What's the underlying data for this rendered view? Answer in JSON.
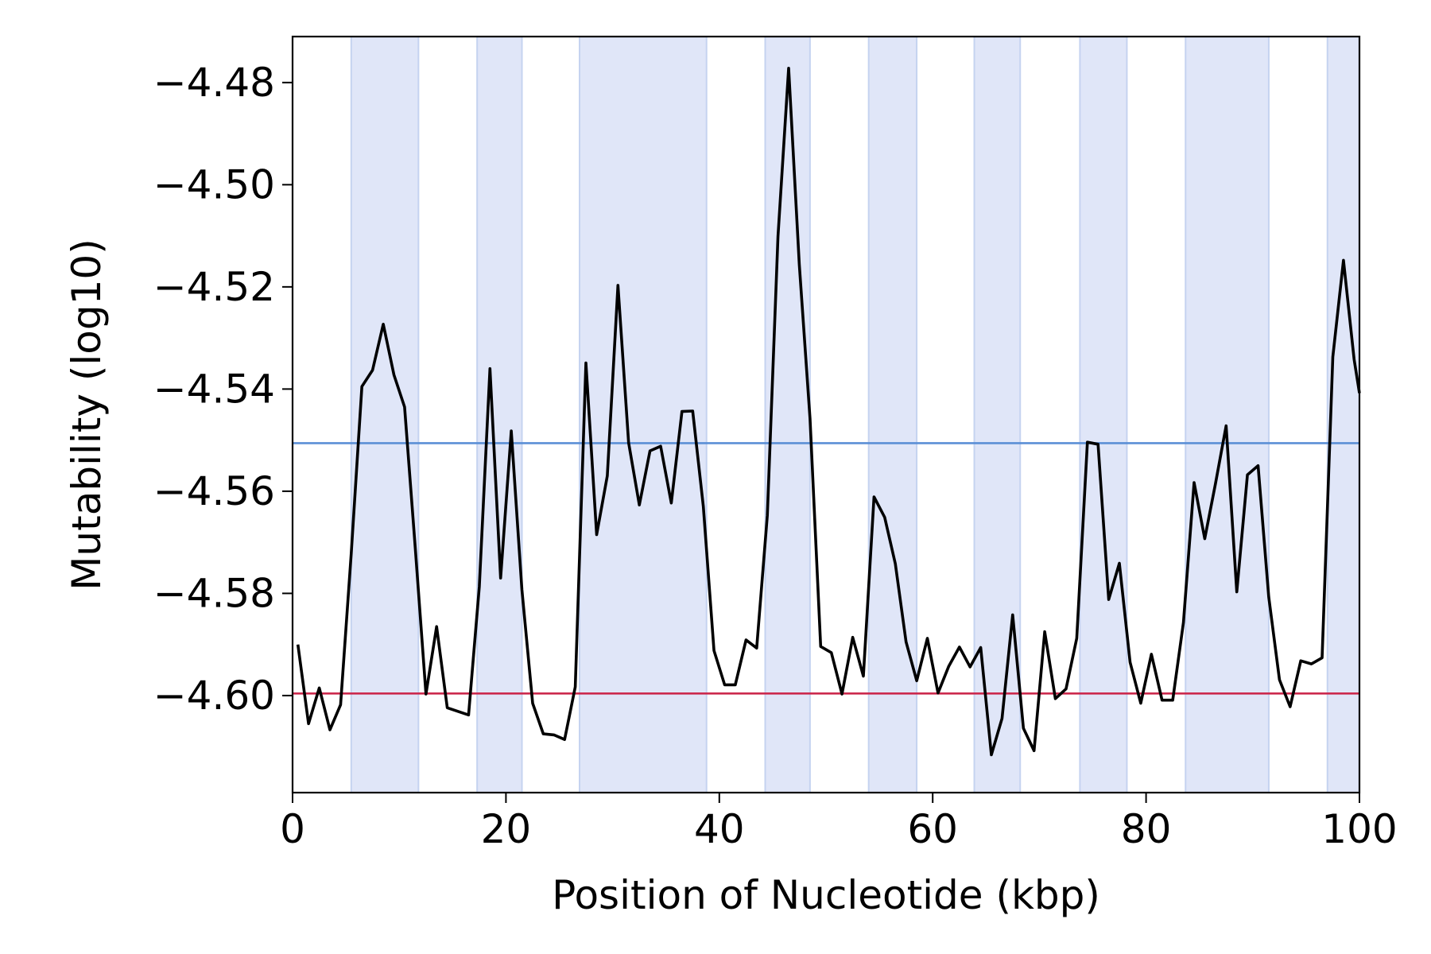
{
  "chart_data": {
    "type": "line",
    "title": "",
    "xlabel": "Position of Nucleotide (kbp)",
    "ylabel": "Mutability (log10)",
    "xlim": [
      0,
      100
    ],
    "ylim": [
      -4.619,
      -4.471
    ],
    "xticks": [
      0,
      20,
      40,
      60,
      80,
      100
    ],
    "xtick_labels": [
      "0",
      "20",
      "40",
      "60",
      "80",
      "100"
    ],
    "yticks": [
      -4.48,
      -4.5,
      -4.52,
      -4.54,
      -4.56,
      -4.58,
      -4.6
    ],
    "ytick_labels": [
      "−4.48",
      "−4.50",
      "−4.52",
      "−4.54",
      "−4.56",
      "−4.58",
      "−4.60"
    ],
    "grid": false,
    "legend": "none",
    "colors": {
      "line": "#000000",
      "upper_threshold": "#5b8fd6",
      "lower_threshold": "#cc2a4e",
      "band_fill": "#e0e6f8",
      "band_edge": "#c5d3f0"
    },
    "shaded_regions": [
      [
        5.5,
        11.8
      ],
      [
        17.3,
        21.5
      ],
      [
        26.9,
        38.8
      ],
      [
        44.3,
        48.5
      ],
      [
        54.0,
        58.5
      ],
      [
        63.9,
        68.2
      ],
      [
        73.8,
        78.2
      ],
      [
        83.7,
        91.5
      ],
      [
        97.0,
        100
      ]
    ],
    "hlines": [
      {
        "y": -4.5506,
        "color": "#5b8fd6"
      },
      {
        "y": -4.5996,
        "color": "#cc2a4e"
      }
    ],
    "series": [
      {
        "x": [
          0.5,
          1.5,
          2.5,
          3.5,
          4.5,
          5.5,
          6.5,
          7.5,
          8.5,
          9.5,
          10.5,
          11.5,
          12.5,
          13.5,
          14.5,
          15.5,
          16.5,
          17.5,
          18.5,
          19.5,
          20.5,
          21.5,
          22.5,
          23.5,
          24.5,
          25.5,
          26.5,
          27.5,
          28.5,
          29.5,
          30.5,
          31.5,
          32.5,
          33.5,
          34.5,
          35.5,
          36.5,
          37.5,
          38.5,
          39.5,
          40.5,
          41.5,
          42.5,
          43.5,
          44.5,
          45.5,
          46.5,
          47.5,
          48.5,
          49.5,
          50.5,
          51.5,
          52.5,
          53.5,
          54.5,
          55.5,
          56.5,
          57.5,
          58.5,
          59.5,
          60.5,
          61.5,
          62.5,
          63.5,
          64.5,
          65.5,
          66.5,
          67.5,
          68.5,
          69.5,
          70.5,
          71.5,
          72.5,
          73.5,
          74.5,
          75.5,
          76.5,
          77.5,
          78.5,
          79.5,
          80.5,
          81.5,
          82.5,
          83.5,
          84.5,
          85.5,
          86.5,
          87.5,
          88.5,
          89.5,
          90.5,
          91.5,
          92.5,
          93.5,
          94.5,
          95.5,
          96.5,
          97.5,
          98.5,
          99.5,
          100.0
        ],
        "values": [
          -4.59,
          -4.6055,
          -4.5985,
          -4.6067,
          -4.6018,
          -4.5722,
          -4.5395,
          -4.5363,
          -4.5273,
          -4.5372,
          -4.5435,
          -4.571,
          -4.5997,
          -4.5865,
          -4.6024,
          -4.6031,
          -4.6038,
          -4.5787,
          -4.536,
          -4.577,
          -4.5482,
          -4.5793,
          -4.6015,
          -4.6075,
          -4.6077,
          -4.6086,
          -4.5983,
          -4.5349,
          -4.5685,
          -4.557,
          -4.5197,
          -4.5505,
          -4.5627,
          -4.5521,
          -4.5512,
          -4.5623,
          -4.5444,
          -4.5443,
          -4.563,
          -4.5912,
          -4.5979,
          -4.5979,
          -4.5891,
          -4.5907,
          -4.5647,
          -4.5101,
          -4.4772,
          -4.5156,
          -4.5458,
          -4.5904,
          -4.5916,
          -4.5997,
          -4.5886,
          -4.5962,
          -4.5611,
          -4.5651,
          -4.5742,
          -4.5895,
          -4.5971,
          -4.5888,
          -4.5995,
          -4.5943,
          -4.5905,
          -4.5944,
          -4.5906,
          -4.6116,
          -4.6045,
          -4.5842,
          -4.6064,
          -4.6108,
          -4.5875,
          -4.6006,
          -4.5987,
          -4.5888,
          -4.5504,
          -4.5508,
          -4.5812,
          -4.5741,
          -4.5935,
          -4.6015,
          -4.5919,
          -4.6009,
          -4.6009,
          -4.5857,
          -4.5583,
          -4.5693,
          -4.5586,
          -4.5472,
          -4.5797,
          -4.5568,
          -4.555,
          -4.5807,
          -4.5969,
          -4.6022,
          -4.5932,
          -4.5938,
          -4.5926,
          -4.5337,
          -4.5148,
          -4.5342,
          -4.5408
        ]
      }
    ]
  }
}
